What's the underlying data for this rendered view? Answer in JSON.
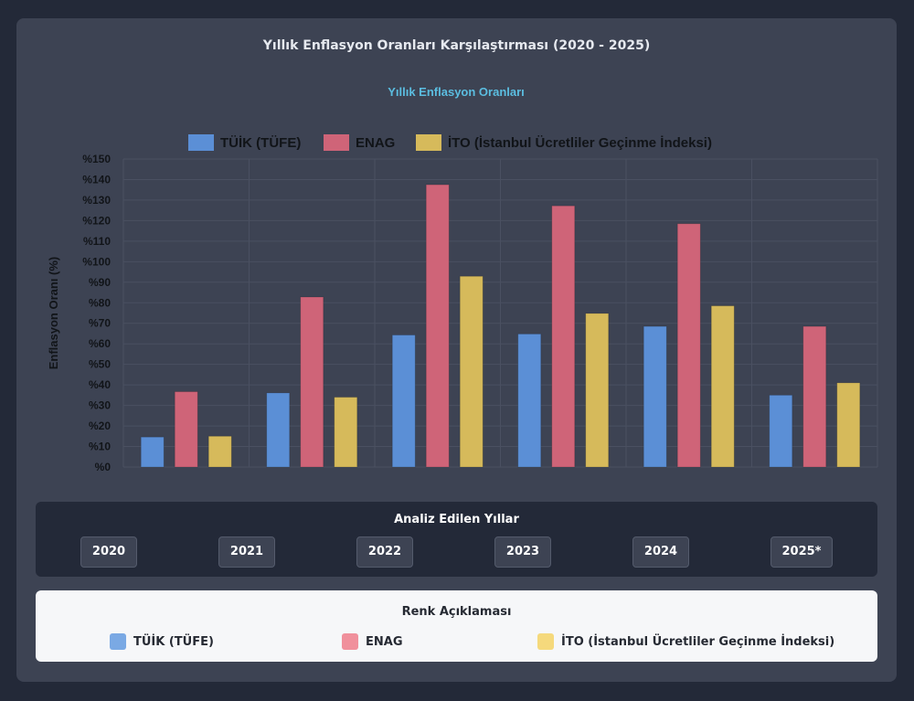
{
  "page": {
    "title": "Yıllık Enflasyon Oranları Karşılaştırması (2020 - 2025)"
  },
  "chart_data": {
    "type": "bar",
    "title": "Yıllık Enflasyon Oranları",
    "xlabel": "",
    "ylabel": "Enflasyon Oranı (%)",
    "ylim": [
      0,
      150
    ],
    "ytick_step": 10,
    "ytick_prefix": "%",
    "grid": true,
    "legend_position": "top-center",
    "categories": [
      "2020",
      "2021",
      "2022",
      "2023",
      "2024",
      "2025*"
    ],
    "series": [
      {
        "name": "TÜİK (TÜFE)",
        "color": "#5b8fd6",
        "values": [
          14.6,
          36.1,
          64.3,
          64.8,
          68.5,
          35.0
        ]
      },
      {
        "name": "ENAG",
        "color": "#cf6478",
        "values": [
          36.7,
          82.8,
          137.5,
          127.2,
          118.5,
          68.5
        ]
      },
      {
        "name": "İTO (İstanbul Ücretliler Geçinme İndeksi)",
        "color": "#d6ba5b",
        "values": [
          15.0,
          34.0,
          92.9,
          74.8,
          78.5,
          41.0
        ]
      }
    ]
  },
  "years_panel": {
    "title": "Analiz Edilen Yıllar",
    "years": [
      "2020",
      "2021",
      "2022",
      "2023",
      "2024",
      "2025*"
    ]
  },
  "legend_panel": {
    "title": "Renk Açıklaması",
    "items": [
      {
        "label": "TÜİK (TÜFE)",
        "color": "#7aa9e4"
      },
      {
        "label": "ENAG",
        "color": "#f0909c"
      },
      {
        "label": "İTO (İstanbul Ücretliler Geçinme İndeksi)",
        "color": "#f5d97c"
      }
    ]
  }
}
